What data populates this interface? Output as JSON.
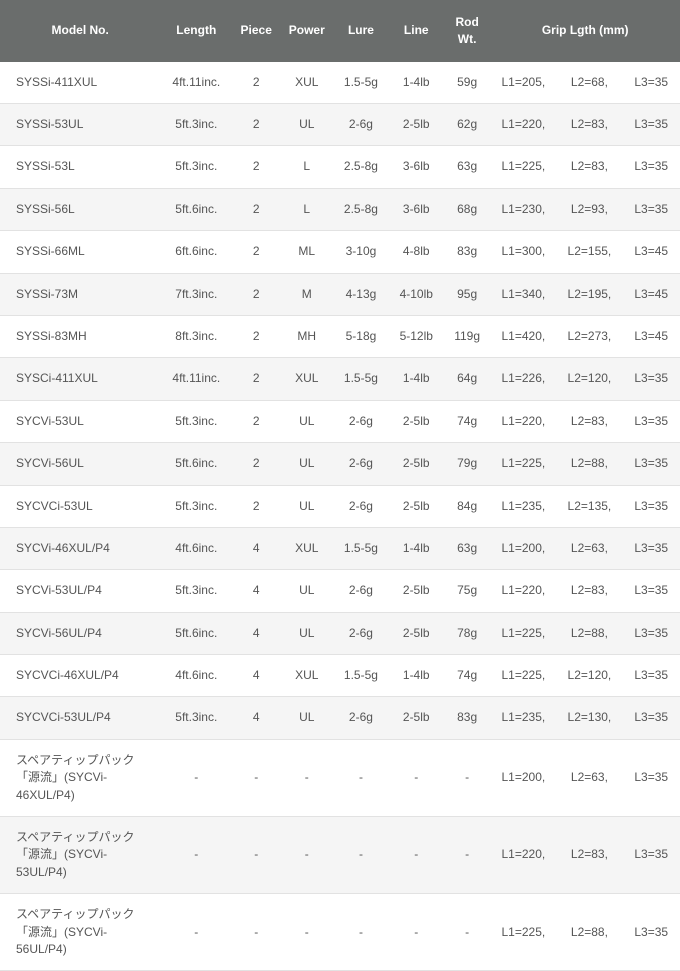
{
  "table": {
    "header_bg": "#6a6d6c",
    "header_color": "#ffffff",
    "row_odd_bg": "#ffffff",
    "row_even_bg": "#f5f5f5",
    "border_color": "#e2e2e2",
    "text_color": "#555555",
    "font_size": 12,
    "columns": {
      "model": "Model No.",
      "length": "Length",
      "piece": "Piece",
      "power": "Power",
      "lure": "Lure",
      "line": "Line",
      "rodwt": "Rod Wt.",
      "grip": "Grip Lgth (mm)"
    },
    "column_widths": {
      "model": 145,
      "length": 65,
      "piece": 40,
      "power": 45,
      "lure": 50,
      "line": 50,
      "rodwt": 42,
      "g1": 58,
      "g2": 58,
      "g3": 52
    },
    "rows": [
      {
        "model": "SYSSi-411XUL",
        "length": "4ft.11inc.",
        "piece": "2",
        "power": "XUL",
        "lure": "1.5-5g",
        "line": "1-4lb",
        "rodwt": "59g",
        "g1": "L1=205,",
        "g2": "L2=68,",
        "g3": "L3=35"
      },
      {
        "model": "SYSSi-53UL",
        "length": "5ft.3inc.",
        "piece": "2",
        "power": "UL",
        "lure": "2-6g",
        "line": "2-5lb",
        "rodwt": "62g",
        "g1": "L1=220,",
        "g2": "L2=83,",
        "g3": "L3=35"
      },
      {
        "model": "SYSSi-53L",
        "length": "5ft.3inc.",
        "piece": "2",
        "power": "L",
        "lure": "2.5-8g",
        "line": "3-6lb",
        "rodwt": "63g",
        "g1": "L1=225,",
        "g2": "L2=83,",
        "g3": "L3=35"
      },
      {
        "model": "SYSSi-56L",
        "length": "5ft.6inc.",
        "piece": "2",
        "power": "L",
        "lure": "2.5-8g",
        "line": "3-6lb",
        "rodwt": "68g",
        "g1": "L1=230,",
        "g2": "L2=93,",
        "g3": "L3=35"
      },
      {
        "model": "SYSSi-66ML",
        "length": "6ft.6inc.",
        "piece": "2",
        "power": "ML",
        "lure": "3-10g",
        "line": "4-8lb",
        "rodwt": "83g",
        "g1": "L1=300,",
        "g2": "L2=155,",
        "g3": "L3=45"
      },
      {
        "model": "SYSSi-73M",
        "length": "7ft.3inc.",
        "piece": "2",
        "power": "M",
        "lure": "4-13g",
        "line": "4-10lb",
        "rodwt": "95g",
        "g1": "L1=340,",
        "g2": "L2=195,",
        "g3": "L3=45"
      },
      {
        "model": "SYSSi-83MH",
        "length": "8ft.3inc.",
        "piece": "2",
        "power": "MH",
        "lure": "5-18g",
        "line": "5-12lb",
        "rodwt": "119g",
        "g1": "L1=420,",
        "g2": "L2=273,",
        "g3": "L3=45"
      },
      {
        "model": "SYSCi-411XUL",
        "length": "4ft.11inc.",
        "piece": "2",
        "power": "XUL",
        "lure": "1.5-5g",
        "line": "1-4lb",
        "rodwt": "64g",
        "g1": "L1=226,",
        "g2": "L2=120,",
        "g3": "L3=35"
      },
      {
        "model": "SYCVi-53UL",
        "length": "5ft.3inc.",
        "piece": "2",
        "power": "UL",
        "lure": "2-6g",
        "line": "2-5lb",
        "rodwt": "74g",
        "g1": "L1=220,",
        "g2": "L2=83,",
        "g3": "L3=35"
      },
      {
        "model": "SYCVi-56UL",
        "length": "5ft.6inc.",
        "piece": "2",
        "power": "UL",
        "lure": "2-6g",
        "line": "2-5lb",
        "rodwt": "79g",
        "g1": "L1=225,",
        "g2": "L2=88,",
        "g3": "L3=35"
      },
      {
        "model": "SYCVCi-53UL",
        "length": "5ft.3inc.",
        "piece": "2",
        "power": "UL",
        "lure": "2-6g",
        "line": "2-5lb",
        "rodwt": "84g",
        "g1": "L1=235,",
        "g2": "L2=135,",
        "g3": "L3=35"
      },
      {
        "model": "SYCVi-46XUL/P4",
        "length": "4ft.6inc.",
        "piece": "4",
        "power": "XUL",
        "lure": "1.5-5g",
        "line": "1-4lb",
        "rodwt": "63g",
        "g1": "L1=200,",
        "g2": "L2=63,",
        "g3": "L3=35"
      },
      {
        "model": "SYCVi-53UL/P4",
        "length": "5ft.3inc.",
        "piece": "4",
        "power": "UL",
        "lure": "2-6g",
        "line": "2-5lb",
        "rodwt": "75g",
        "g1": "L1=220,",
        "g2": "L2=83,",
        "g3": "L3=35"
      },
      {
        "model": "SYCVi-56UL/P4",
        "length": "5ft.6inc.",
        "piece": "4",
        "power": "UL",
        "lure": "2-6g",
        "line": "2-5lb",
        "rodwt": "78g",
        "g1": "L1=225,",
        "g2": "L2=88,",
        "g3": "L3=35"
      },
      {
        "model": "SYCVCi-46XUL/P4",
        "length": "4ft.6inc.",
        "piece": "4",
        "power": "XUL",
        "lure": "1.5-5g",
        "line": "1-4lb",
        "rodwt": "74g",
        "g1": "L1=225,",
        "g2": "L2=120,",
        "g3": "L3=35"
      },
      {
        "model": "SYCVCi-53UL/P4",
        "length": "5ft.3inc.",
        "piece": "4",
        "power": "UL",
        "lure": "2-6g",
        "line": "2-5lb",
        "rodwt": "83g",
        "g1": "L1=235,",
        "g2": "L2=130,",
        "g3": "L3=35"
      },
      {
        "model": "スペアティップパック「源流」(SYCVi-46XUL/P4)",
        "length": "-",
        "piece": "-",
        "power": "-",
        "lure": "-",
        "line": "-",
        "rodwt": "-",
        "g1": "L1=200,",
        "g2": "L2=63,",
        "g3": "L3=35"
      },
      {
        "model": "スペアティップパック「源流」(SYCVi-53UL/P4)",
        "length": "-",
        "piece": "-",
        "power": "-",
        "lure": "-",
        "line": "-",
        "rodwt": "-",
        "g1": "L1=220,",
        "g2": "L2=83,",
        "g3": "L3=35"
      },
      {
        "model": "スペアティップパック「源流」(SYCVi-56UL/P4)",
        "length": "-",
        "piece": "-",
        "power": "-",
        "lure": "-",
        "line": "-",
        "rodwt": "-",
        "g1": "L1=225,",
        "g2": "L2=88,",
        "g3": "L3=35"
      }
    ]
  }
}
